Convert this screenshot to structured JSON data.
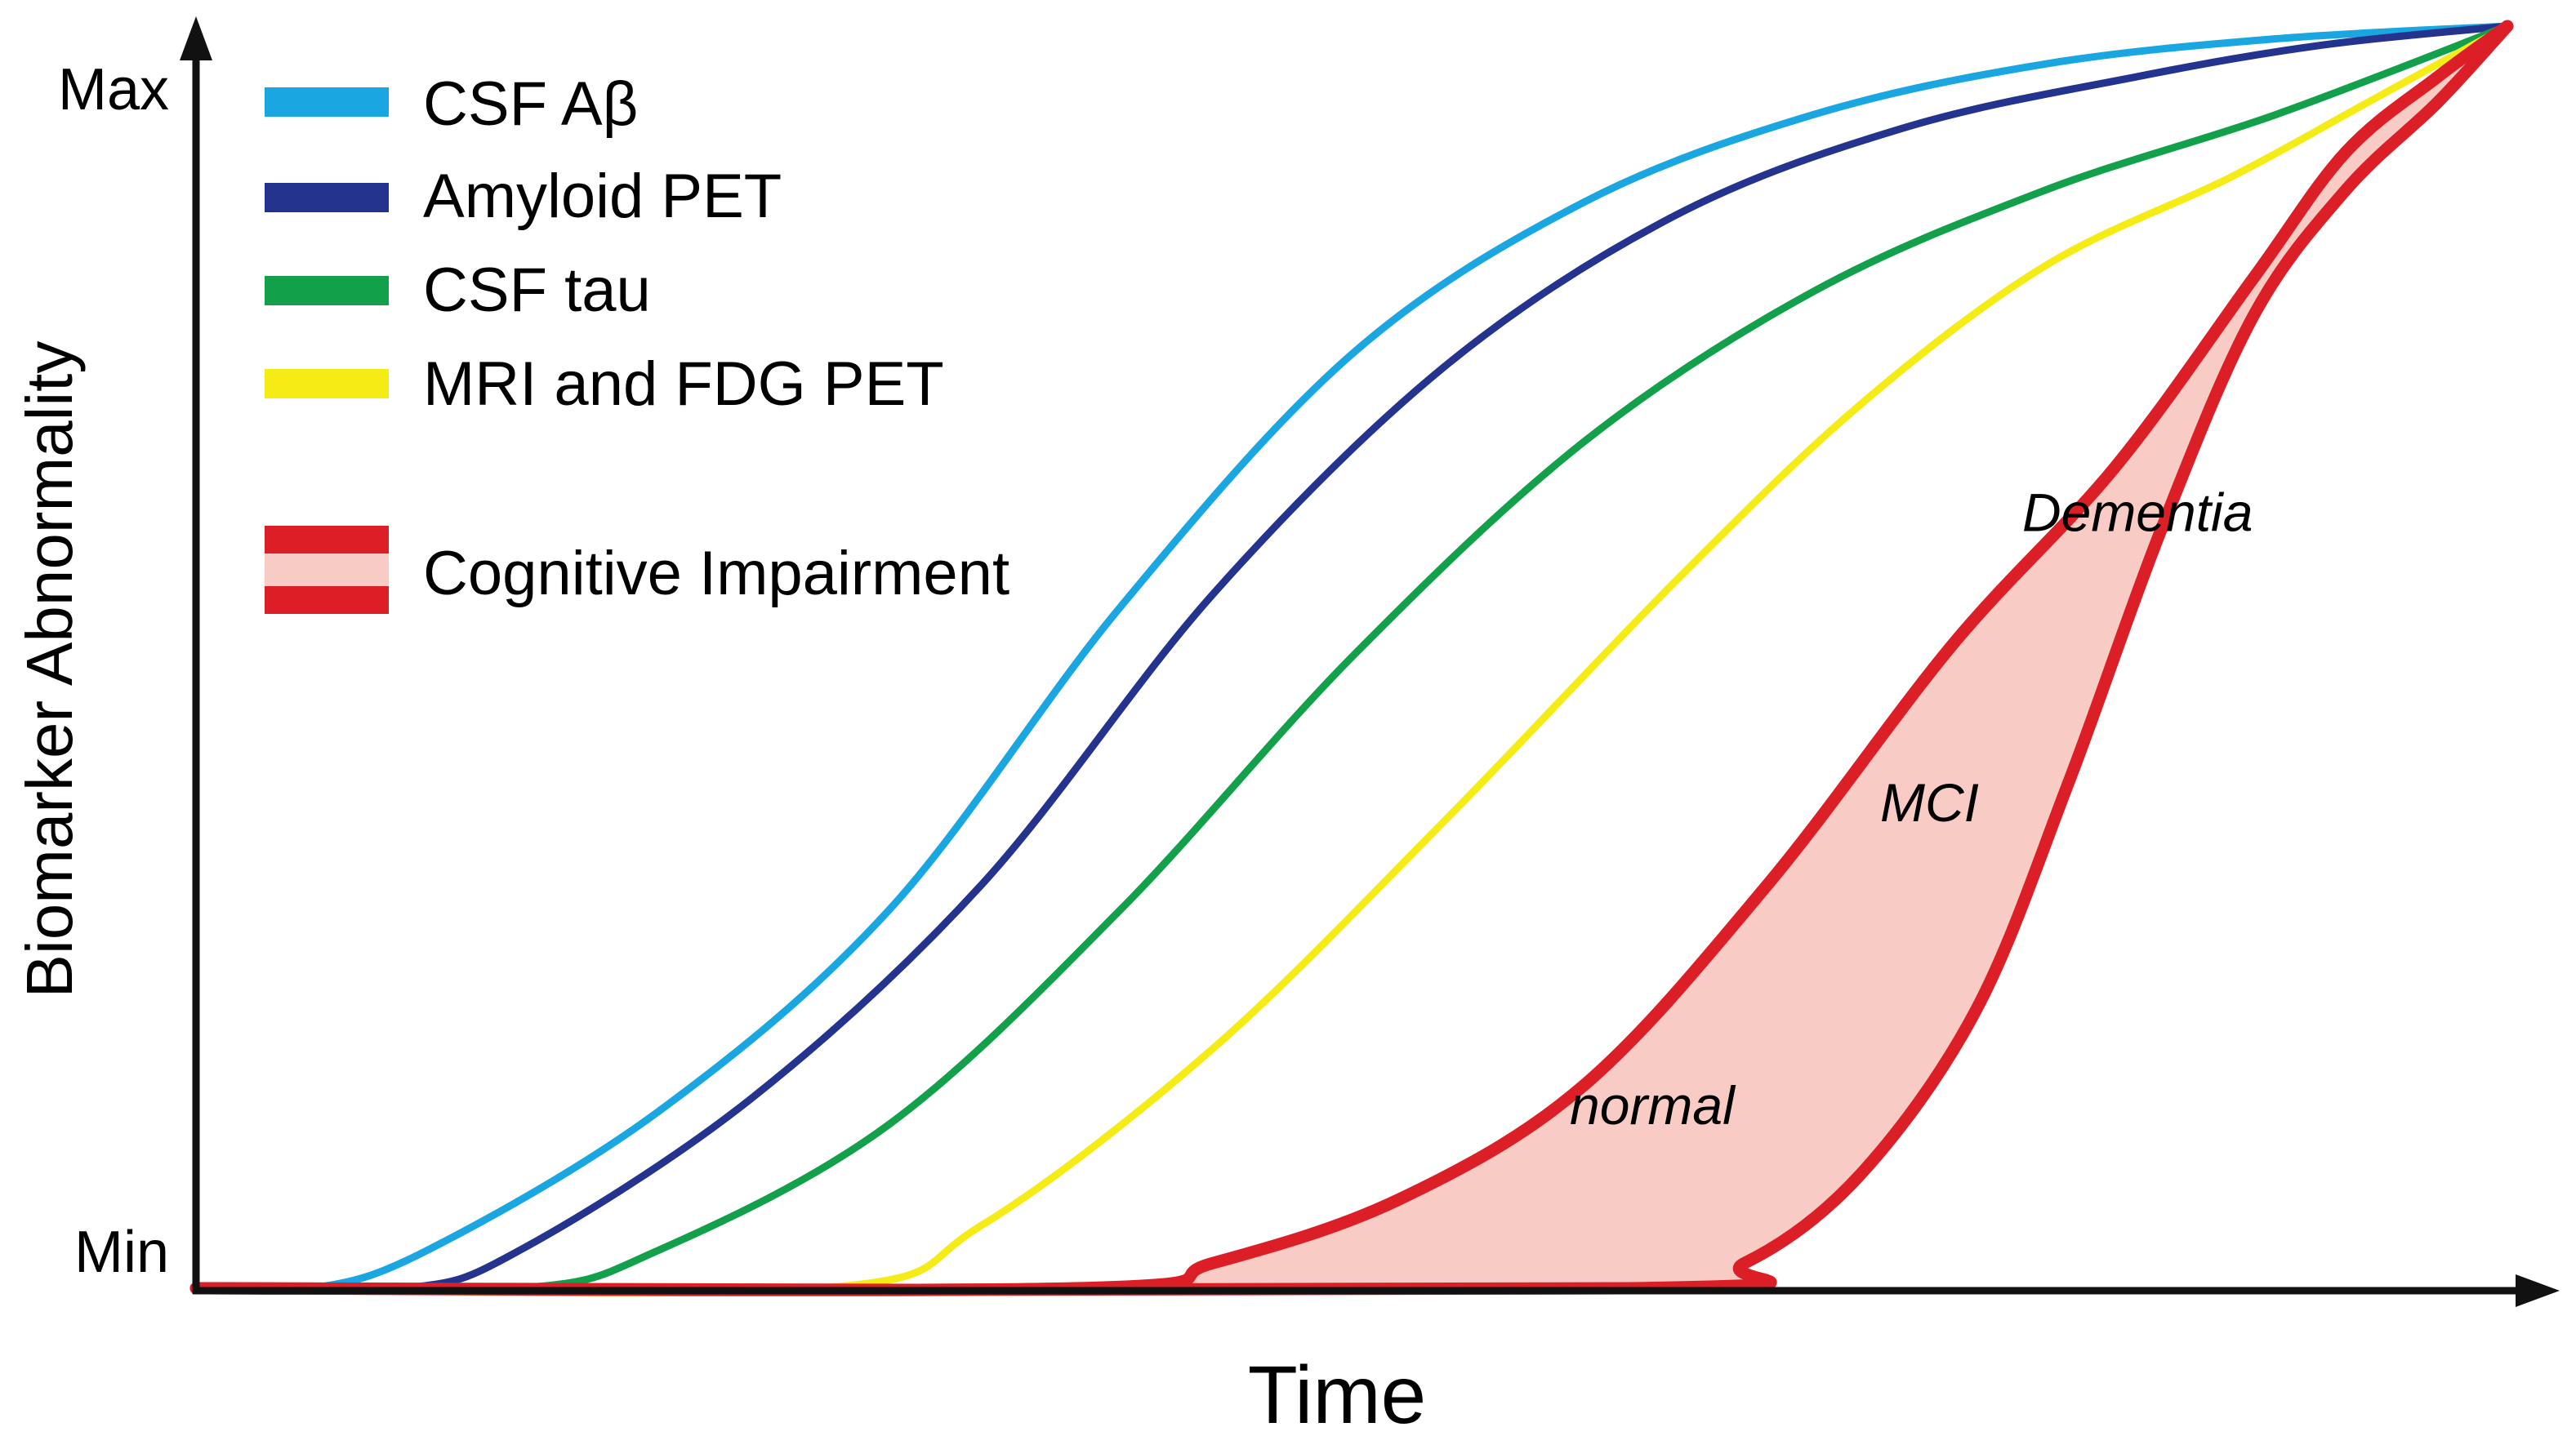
{
  "chart_data": {
    "type": "line",
    "title": "",
    "xlabel": "Time",
    "ylabel": "Biomarker Abnormality",
    "y_tick_labels": {
      "max": "Max",
      "min": "Min"
    },
    "xlim": [
      0,
      100
    ],
    "ylim": [
      0,
      100
    ],
    "grid": false,
    "legend_position": "top-left",
    "series": [
      {
        "name": "CSF Aβ",
        "color": "#1aa6e0",
        "points": [
          [
            0,
            0
          ],
          [
            5,
            0
          ],
          [
            10,
            3
          ],
          [
            20,
            14
          ],
          [
            30,
            30
          ],
          [
            40,
            54
          ],
          [
            50,
            74
          ],
          [
            60,
            86
          ],
          [
            70,
            93
          ],
          [
            80,
            97
          ],
          [
            90,
            99
          ],
          [
            100,
            100
          ]
        ]
      },
      {
        "name": "Amyloid PET",
        "color": "#24338e",
        "points": [
          [
            0,
            0
          ],
          [
            9,
            0
          ],
          [
            14,
            3
          ],
          [
            24,
            15
          ],
          [
            34,
            32
          ],
          [
            44,
            55
          ],
          [
            54,
            73
          ],
          [
            64,
            85
          ],
          [
            74,
            92
          ],
          [
            84,
            96
          ],
          [
            92,
            98.5
          ],
          [
            100,
            100
          ]
        ]
      },
      {
        "name": "CSF tau",
        "color": "#12a04a",
        "points": [
          [
            0,
            0
          ],
          [
            14,
            0
          ],
          [
            20,
            3
          ],
          [
            30,
            13
          ],
          [
            40,
            30
          ],
          [
            50,
            50
          ],
          [
            60,
            67
          ],
          [
            70,
            79
          ],
          [
            80,
            87
          ],
          [
            90,
            93
          ],
          [
            100,
            100
          ]
        ]
      },
      {
        "name": "MRI and FDG PET",
        "color": "#f5ec16",
        "points": [
          [
            0,
            0
          ],
          [
            27,
            0
          ],
          [
            34,
            5
          ],
          [
            44,
            19
          ],
          [
            54,
            37
          ],
          [
            64,
            56
          ],
          [
            72,
            70
          ],
          [
            80,
            81
          ],
          [
            88,
            88
          ],
          [
            94,
            94
          ],
          [
            100,
            100
          ]
        ]
      },
      {
        "name": "Cognitive Impairment (upper)",
        "color": "#dc1f26",
        "points": [
          [
            0,
            0
          ],
          [
            38,
            0
          ],
          [
            44,
            2
          ],
          [
            52,
            7
          ],
          [
            60,
            16
          ],
          [
            68,
            32
          ],
          [
            76,
            51
          ],
          [
            83,
            65
          ],
          [
            89,
            80
          ],
          [
            93,
            90
          ],
          [
            97,
            96
          ],
          [
            100,
            100
          ]
        ]
      },
      {
        "name": "Cognitive Impairment (lower)",
        "color": "#dc1f26",
        "points": [
          [
            0,
            0
          ],
          [
            62,
            0
          ],
          [
            67,
            2
          ],
          [
            72,
            9
          ],
          [
            77,
            22
          ],
          [
            81,
            40
          ],
          [
            85,
            60
          ],
          [
            89,
            77
          ],
          [
            93,
            87
          ],
          [
            97,
            94
          ],
          [
            100,
            100
          ]
        ]
      }
    ],
    "band": {
      "name": "Cognitive Impairment",
      "fill": "#f8cbc4",
      "edge": "#dc1f26"
    },
    "legend": [
      {
        "label": "CSF Aβ",
        "color": "#1aa6e0"
      },
      {
        "label": "Amyloid PET",
        "color": "#24338e"
      },
      {
        "label": "CSF tau",
        "color": "#12a04a"
      },
      {
        "label": "MRI and FDG PET",
        "color": "#f5ec16"
      },
      {
        "label": "Cognitive Impairment",
        "color": "#dc1f26",
        "fill": "#f8cbc4"
      }
    ],
    "annotations": [
      {
        "text": "normal",
        "x": 63,
        "y": 13
      },
      {
        "text": "MCI",
        "x": 75,
        "y": 37
      },
      {
        "text": "Dementia",
        "x": 84,
        "y": 60
      }
    ]
  }
}
